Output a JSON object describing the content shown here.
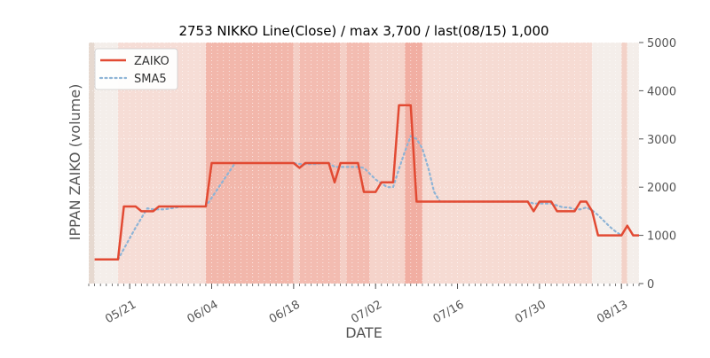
{
  "chart_data": {
    "type": "line",
    "title": "2753 NIKKO Line(Close) / max 3,700 / last(08/15) 1,000",
    "xlabel": "DATE",
    "ylabel": "IPPAN ZAIKO (volume)",
    "y_axis_side": "right",
    "ylim": [
      0,
      5000
    ],
    "yticks": [
      "0",
      "1000",
      "2000",
      "3000",
      "4000",
      "5000"
    ],
    "xlim": [
      "2023-05-14",
      "2023-08-16"
    ],
    "xticks": [
      {
        "date": "2023-05-21",
        "label": "05/21"
      },
      {
        "date": "2023-06-04",
        "label": "06/04"
      },
      {
        "date": "2023-06-18",
        "label": "06/18"
      },
      {
        "date": "2023-07-02",
        "label": "07/02"
      },
      {
        "date": "2023-07-16",
        "label": "07/16"
      },
      {
        "date": "2023-07-30",
        "label": "07/30"
      },
      {
        "date": "2023-08-13",
        "label": "08/13"
      }
    ],
    "legend": {
      "position": "upper-left"
    },
    "grid": true,
    "series": [
      {
        "name": "ZAIKO",
        "color": "#e24a33",
        "style": "solid",
        "points": [
          [
            "2023-05-15",
            500
          ],
          [
            "2023-05-16",
            500
          ],
          [
            "2023-05-17",
            500
          ],
          [
            "2023-05-18",
            500
          ],
          [
            "2023-05-19",
            500
          ],
          [
            "2023-05-20",
            1600
          ],
          [
            "2023-05-21",
            1600
          ],
          [
            "2023-05-22",
            1600
          ],
          [
            "2023-05-23",
            1500
          ],
          [
            "2023-05-24",
            1500
          ],
          [
            "2023-05-25",
            1500
          ],
          [
            "2023-05-26",
            1600
          ],
          [
            "2023-05-27",
            1600
          ],
          [
            "2023-05-28",
            1600
          ],
          [
            "2023-05-29",
            1600
          ],
          [
            "2023-05-30",
            1600
          ],
          [
            "2023-05-31",
            1600
          ],
          [
            "2023-06-01",
            1600
          ],
          [
            "2023-06-02",
            1600
          ],
          [
            "2023-06-03",
            1600
          ],
          [
            "2023-06-04",
            2500
          ],
          [
            "2023-06-18",
            2500
          ],
          [
            "2023-06-19",
            2400
          ],
          [
            "2023-06-20",
            2500
          ],
          [
            "2023-06-21",
            2500
          ],
          [
            "2023-06-22",
            2500
          ],
          [
            "2023-06-23",
            2500
          ],
          [
            "2023-06-24",
            2500
          ],
          [
            "2023-06-25",
            2100
          ],
          [
            "2023-06-26",
            2500
          ],
          [
            "2023-06-27",
            2500
          ],
          [
            "2023-06-28",
            2500
          ],
          [
            "2023-06-29",
            2500
          ],
          [
            "2023-06-30",
            1900
          ],
          [
            "2023-07-01",
            1900
          ],
          [
            "2023-07-02",
            1900
          ],
          [
            "2023-07-03",
            2100
          ],
          [
            "2023-07-04",
            2100
          ],
          [
            "2023-07-05",
            2100
          ],
          [
            "2023-07-06",
            3700
          ],
          [
            "2023-07-07",
            3700
          ],
          [
            "2023-07-08",
            3700
          ],
          [
            "2023-07-09",
            1700
          ],
          [
            "2023-07-28",
            1700
          ],
          [
            "2023-07-29",
            1500
          ],
          [
            "2023-07-30",
            1700
          ],
          [
            "2023-07-31",
            1700
          ],
          [
            "2023-08-01",
            1700
          ],
          [
            "2023-08-02",
            1500
          ],
          [
            "2023-08-03",
            1500
          ],
          [
            "2023-08-04",
            1500
          ],
          [
            "2023-08-05",
            1500
          ],
          [
            "2023-08-06",
            1700
          ],
          [
            "2023-08-07",
            1700
          ],
          [
            "2023-08-08",
            1500
          ],
          [
            "2023-08-09",
            1000
          ],
          [
            "2023-08-12",
            1000
          ],
          [
            "2023-08-13",
            1000
          ],
          [
            "2023-08-14",
            1200
          ],
          [
            "2023-08-15",
            1000
          ],
          [
            "2023-08-16",
            1000
          ]
        ]
      },
      {
        "name": "SMA5",
        "color": "#8eb4d6",
        "style": "dotted",
        "points": [
          [
            "2023-05-19",
            500
          ],
          [
            "2023-05-20",
            720
          ],
          [
            "2023-05-21",
            940
          ],
          [
            "2023-05-22",
            1160
          ],
          [
            "2023-05-23",
            1360
          ],
          [
            "2023-05-24",
            1560
          ],
          [
            "2023-05-25",
            1540
          ],
          [
            "2023-05-26",
            1540
          ],
          [
            "2023-05-27",
            1540
          ],
          [
            "2023-05-28",
            1560
          ],
          [
            "2023-05-29",
            1580
          ],
          [
            "2023-05-30",
            1600
          ],
          [
            "2023-06-03",
            1600
          ],
          [
            "2023-06-04",
            1780
          ],
          [
            "2023-06-05",
            1960
          ],
          [
            "2023-06-06",
            2140
          ],
          [
            "2023-06-07",
            2320
          ],
          [
            "2023-06-08",
            2500
          ],
          [
            "2023-06-18",
            2500
          ],
          [
            "2023-06-19",
            2480
          ],
          [
            "2023-06-20",
            2480
          ],
          [
            "2023-06-21",
            2480
          ],
          [
            "2023-06-22",
            2480
          ],
          [
            "2023-06-23",
            2500
          ],
          [
            "2023-06-24",
            2500
          ],
          [
            "2023-06-25",
            2420
          ],
          [
            "2023-06-26",
            2420
          ],
          [
            "2023-06-27",
            2420
          ],
          [
            "2023-06-28",
            2420
          ],
          [
            "2023-06-29",
            2420
          ],
          [
            "2023-06-30",
            2400
          ],
          [
            "2023-07-01",
            2280
          ],
          [
            "2023-07-02",
            2160
          ],
          [
            "2023-07-03",
            2080
          ],
          [
            "2023-07-04",
            2000
          ],
          [
            "2023-07-05",
            2000
          ],
          [
            "2023-07-06",
            2380
          ],
          [
            "2023-07-07",
            2740
          ],
          [
            "2023-07-08",
            3060
          ],
          [
            "2023-07-09",
            3000
          ],
          [
            "2023-07-10",
            2800
          ],
          [
            "2023-07-11",
            2400
          ],
          [
            "2023-07-12",
            1900
          ],
          [
            "2023-07-13",
            1700
          ],
          [
            "2023-07-28",
            1700
          ],
          [
            "2023-07-29",
            1660
          ],
          [
            "2023-07-30",
            1660
          ],
          [
            "2023-07-31",
            1660
          ],
          [
            "2023-08-01",
            1660
          ],
          [
            "2023-08-02",
            1620
          ],
          [
            "2023-08-03",
            1580
          ],
          [
            "2023-08-04",
            1580
          ],
          [
            "2023-08-05",
            1540
          ],
          [
            "2023-08-06",
            1540
          ],
          [
            "2023-08-07",
            1580
          ],
          [
            "2023-08-08",
            1520
          ],
          [
            "2023-08-09",
            1420
          ],
          [
            "2023-08-10",
            1300
          ],
          [
            "2023-08-11",
            1180
          ],
          [
            "2023-08-12",
            1080
          ],
          [
            "2023-08-13",
            1000
          ]
        ]
      }
    ],
    "background_bands": [
      {
        "from": "2023-05-14",
        "to": "2023-05-15",
        "color": "#e6d9d0"
      },
      {
        "from": "2023-05-15",
        "to": "2023-05-19",
        "color": "#f4eeea"
      },
      {
        "from": "2023-05-19",
        "to": "2023-06-03",
        "color": "#f6ddd6"
      },
      {
        "from": "2023-06-03",
        "to": "2023-06-18",
        "color": "#f2b7ab"
      },
      {
        "from": "2023-06-18",
        "to": "2023-06-19",
        "color": "#f4cfc6"
      },
      {
        "from": "2023-06-19",
        "to": "2023-06-26",
        "color": "#f3bcb1"
      },
      {
        "from": "2023-06-26",
        "to": "2023-06-27",
        "color": "#f4cfc6"
      },
      {
        "from": "2023-06-27",
        "to": "2023-07-01",
        "color": "#f3bcb1"
      },
      {
        "from": "2023-07-01",
        "to": "2023-07-07",
        "color": "#f5d3ca"
      },
      {
        "from": "2023-07-07",
        "to": "2023-07-10",
        "color": "#f1aea2"
      },
      {
        "from": "2023-07-10",
        "to": "2023-08-08",
        "color": "#f6dbd3"
      },
      {
        "from": "2023-08-08",
        "to": "2023-08-13",
        "color": "#f4eeea"
      },
      {
        "from": "2023-08-13",
        "to": "2023-08-14",
        "color": "#f3d2c8"
      },
      {
        "from": "2023-08-14",
        "to": "2023-08-16",
        "color": "#f4eeea"
      }
    ]
  }
}
